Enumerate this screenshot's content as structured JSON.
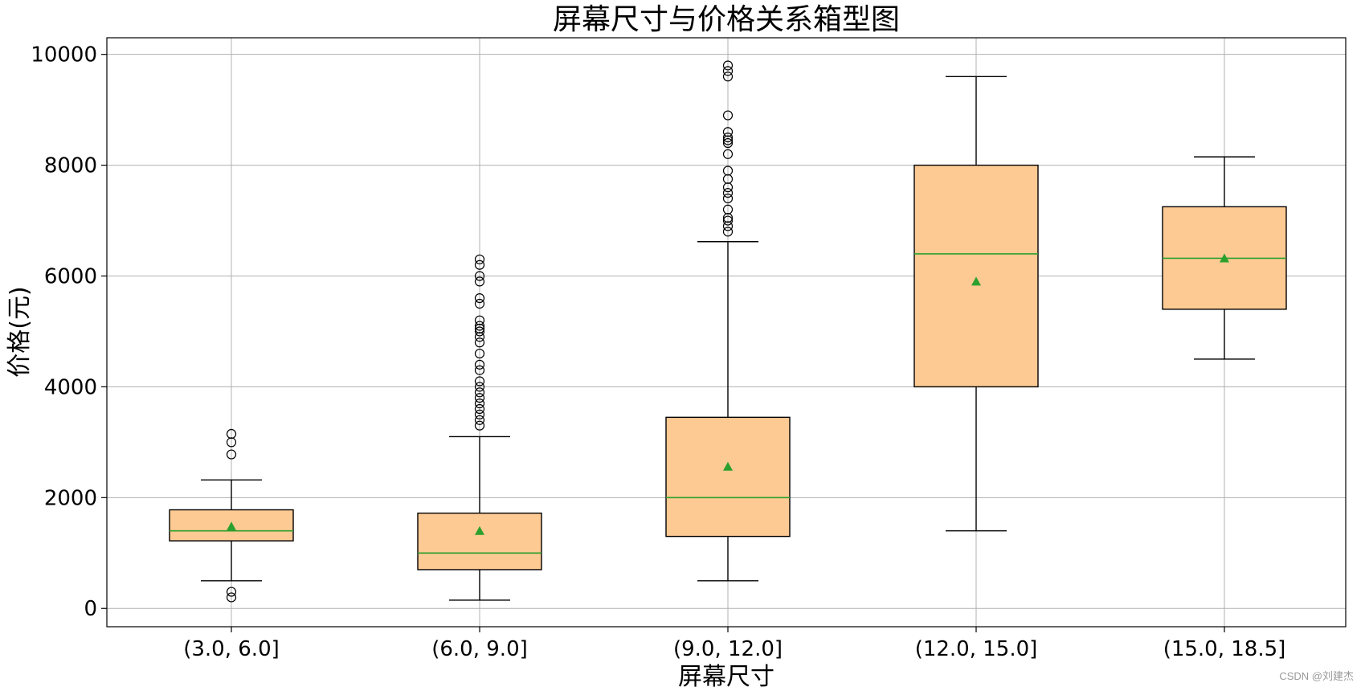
{
  "chart_data": {
    "type": "box",
    "title": "屏幕尺寸与价格关系箱型图",
    "xlabel": "屏幕尺寸",
    "ylabel": "价格(元)",
    "ylim": [
      -330,
      10300
    ],
    "yticks": [
      0,
      2000,
      4000,
      6000,
      8000,
      10000
    ],
    "grid": true,
    "categories": [
      "(3.0, 6.0]",
      "(6.0, 9.0]",
      "(9.0, 12.0]",
      "(12.0, 15.0]",
      "(15.0, 18.5]"
    ],
    "boxes": [
      {
        "whisker_low": 500,
        "q1": 1220,
        "median": 1400,
        "q3": 1780,
        "whisker_high": 2320,
        "mean": 1480,
        "outliers": [
          200,
          300,
          2780,
          3000,
          3150
        ]
      },
      {
        "whisker_low": 150,
        "q1": 700,
        "median": 1000,
        "q3": 1720,
        "whisker_high": 3100,
        "mean": 1400,
        "outliers": [
          3300,
          3400,
          3500,
          3600,
          3700,
          3800,
          3900,
          4000,
          4100,
          4300,
          4400,
          4600,
          4800,
          4900,
          5000,
          5050,
          5100,
          5200,
          5500,
          5600,
          5900,
          6000,
          6200,
          6300
        ]
      },
      {
        "whisker_low": 500,
        "q1": 1300,
        "median": 2000,
        "q3": 3450,
        "whisker_high": 6620,
        "mean": 2560,
        "outliers": [
          6800,
          6900,
          7000,
          7050,
          7200,
          7400,
          7500,
          7600,
          7750,
          7900,
          8200,
          8400,
          8450,
          8500,
          8600,
          8900,
          9600,
          9700,
          9800
        ]
      },
      {
        "whisker_low": 1400,
        "q1": 4000,
        "median": 6400,
        "q3": 8000,
        "whisker_high": 9600,
        "mean": 5900,
        "outliers": []
      },
      {
        "whisker_low": 4500,
        "q1": 5400,
        "median": 6320,
        "q3": 7250,
        "whisker_high": 8150,
        "mean": 6320,
        "outliers": []
      }
    ],
    "colors": {
      "box_fill": "#fdca94",
      "box_edge": "#000000",
      "median": "#2ca02c",
      "mean_marker": "#2ca02c",
      "grid": "#b0b0b0"
    }
  },
  "watermark": "CSDN @刘建杰"
}
